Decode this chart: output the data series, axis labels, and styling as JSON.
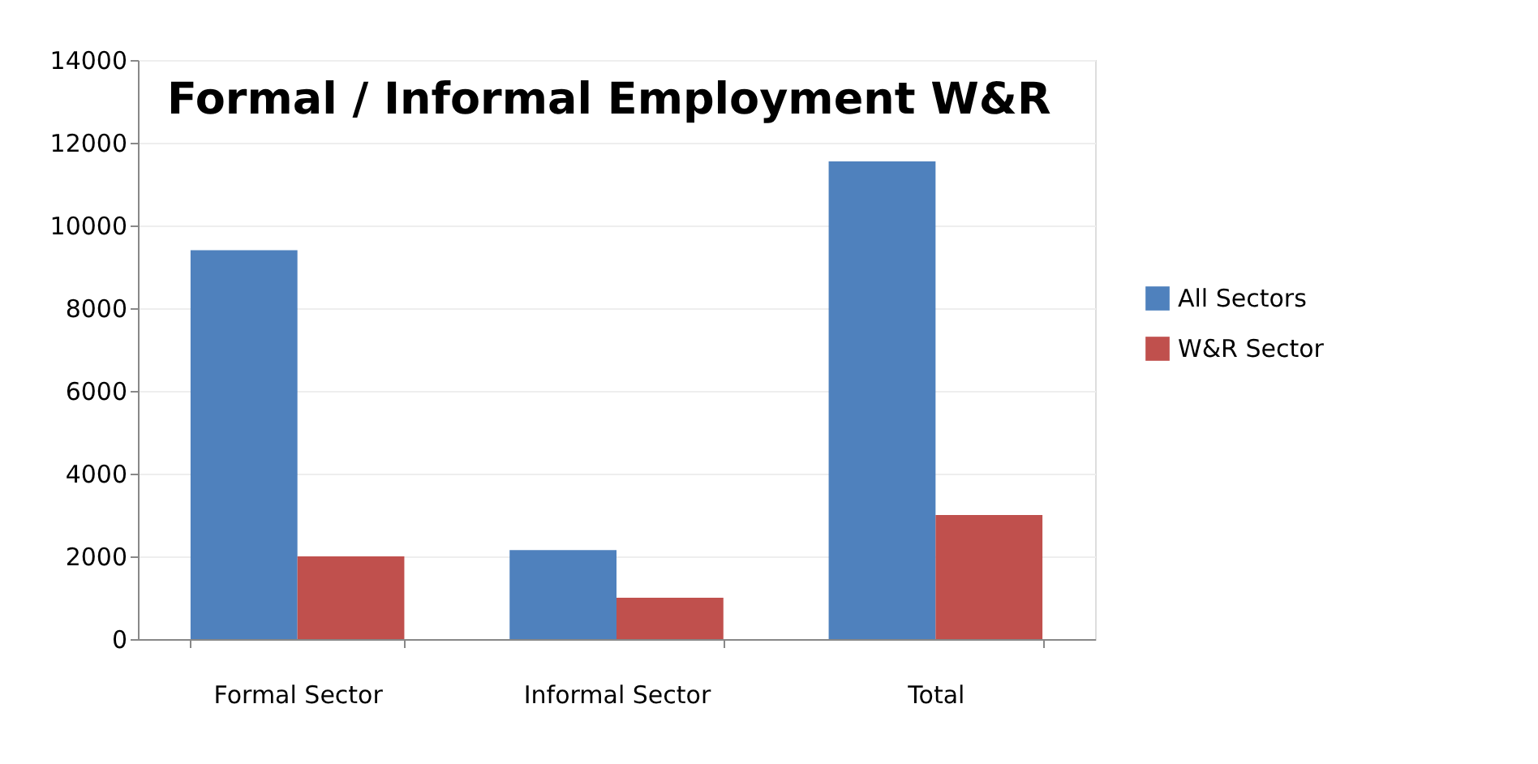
{
  "chart_data": {
    "type": "bar",
    "title": "Formal / Informal Employment W&R",
    "categories": [
      "Formal Sector",
      "Informal Sector",
      "Total"
    ],
    "series": [
      {
        "name": "All Sectors",
        "color": "#4f81bd",
        "values": [
          9400,
          2150,
          11550
        ]
      },
      {
        "name": "W&R Sector",
        "color": "#c0504d",
        "values": [
          2000,
          1000,
          3000
        ]
      }
    ],
    "ylim": [
      0,
      14000
    ],
    "yticks": [
      0,
      2000,
      4000,
      6000,
      8000,
      10000,
      12000,
      14000
    ],
    "grid": "y",
    "legend": "right"
  }
}
